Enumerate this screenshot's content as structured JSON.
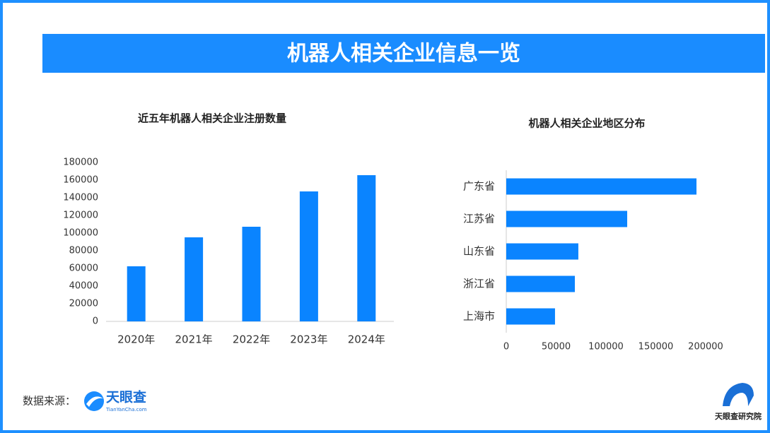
{
  "header": {
    "title": "机器人相关企业信息一览"
  },
  "chart_data": [
    {
      "type": "bar",
      "title": "近五年机器人相关企业注册数量",
      "categories": [
        "2020年",
        "2021年",
        "2022年",
        "2023年",
        "2024年"
      ],
      "values": [
        62400,
        95200,
        107200,
        147200,
        165600
      ],
      "color": "#0a84ff",
      "ylim": [
        0,
        180000
      ],
      "yticks": [
        0,
        20000,
        40000,
        60000,
        80000,
        100000,
        120000,
        140000,
        160000,
        180000
      ]
    },
    {
      "type": "barh",
      "title": "机器人相关企业地区分布",
      "categories": [
        "广东省",
        "江苏省",
        "山东省",
        "浙江省",
        "上海市"
      ],
      "values": [
        190800,
        121300,
        72300,
        68800,
        48900
      ],
      "color": "#0a84ff",
      "xlim": [
        0,
        200000
      ],
      "xticks": [
        0,
        50000,
        100000,
        150000,
        200000
      ]
    }
  ],
  "footer": {
    "source_label": "数据来源：",
    "source_logo": "天眼查",
    "source_url": "TianYanCha.com",
    "brand": "天眼查研究院"
  }
}
